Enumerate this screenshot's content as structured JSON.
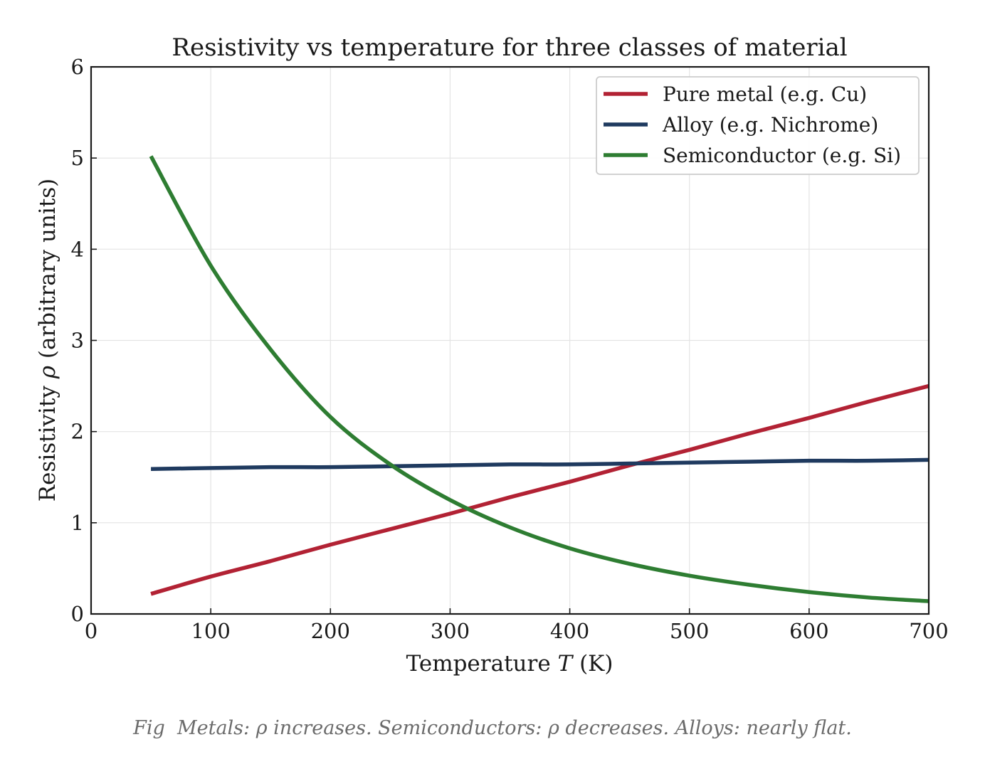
{
  "chart_data": {
    "type": "line",
    "title": "Resistivity vs temperature for three classes of material",
    "xlabel_prefix": "Temperature ",
    "xlabel_var": "T",
    "xlabel_suffix": " (K)",
    "ylabel_prefix": "Resistivity ",
    "ylabel_var": "ρ",
    "ylabel_suffix": " (arbitrary units)",
    "xlim": [
      0,
      700
    ],
    "ylim": [
      0,
      6
    ],
    "x_ticks": [
      0,
      100,
      200,
      300,
      400,
      500,
      600,
      700
    ],
    "y_ticks": [
      0,
      1,
      2,
      3,
      4,
      5,
      6
    ],
    "x_tick_labels": [
      "0",
      "100",
      "200",
      "300",
      "400",
      "500",
      "600",
      "700"
    ],
    "y_tick_labels": [
      "0",
      "1",
      "2",
      "3",
      "4",
      "5",
      "6"
    ],
    "grid": true,
    "legend_position": "top-right",
    "series": [
      {
        "name": "Pure metal (e.g. Cu)",
        "color": "#b22234",
        "x": [
          50,
          100,
          150,
          200,
          250,
          300,
          350,
          400,
          450,
          500,
          550,
          600,
          650,
          700
        ],
        "y": [
          0.22,
          0.41,
          0.58,
          0.76,
          0.93,
          1.1,
          1.28,
          1.45,
          1.63,
          1.8,
          1.98,
          2.15,
          2.33,
          2.5
        ]
      },
      {
        "name": "Alloy (e.g. Nichrome)",
        "color": "#1f3a5f",
        "x": [
          50,
          100,
          150,
          200,
          250,
          300,
          350,
          400,
          450,
          500,
          550,
          600,
          650,
          700
        ],
        "y": [
          1.59,
          1.6,
          1.61,
          1.61,
          1.62,
          1.63,
          1.64,
          1.64,
          1.65,
          1.66,
          1.67,
          1.68,
          1.68,
          1.69
        ]
      },
      {
        "name": "Semiconductor (e.g. Si)",
        "color": "#2e7d32",
        "x": [
          50,
          100,
          150,
          200,
          250,
          300,
          350,
          400,
          450,
          500,
          550,
          600,
          650,
          700
        ],
        "y": [
          5.02,
          3.82,
          2.9,
          2.16,
          1.64,
          1.25,
          0.95,
          0.72,
          0.55,
          0.42,
          0.32,
          0.24,
          0.18,
          0.14
        ]
      }
    ]
  },
  "caption": {
    "prefix": "Fig",
    "text": "Metals: ρ increases. Semiconductors: ρ decreases. Alloys: nearly flat."
  }
}
